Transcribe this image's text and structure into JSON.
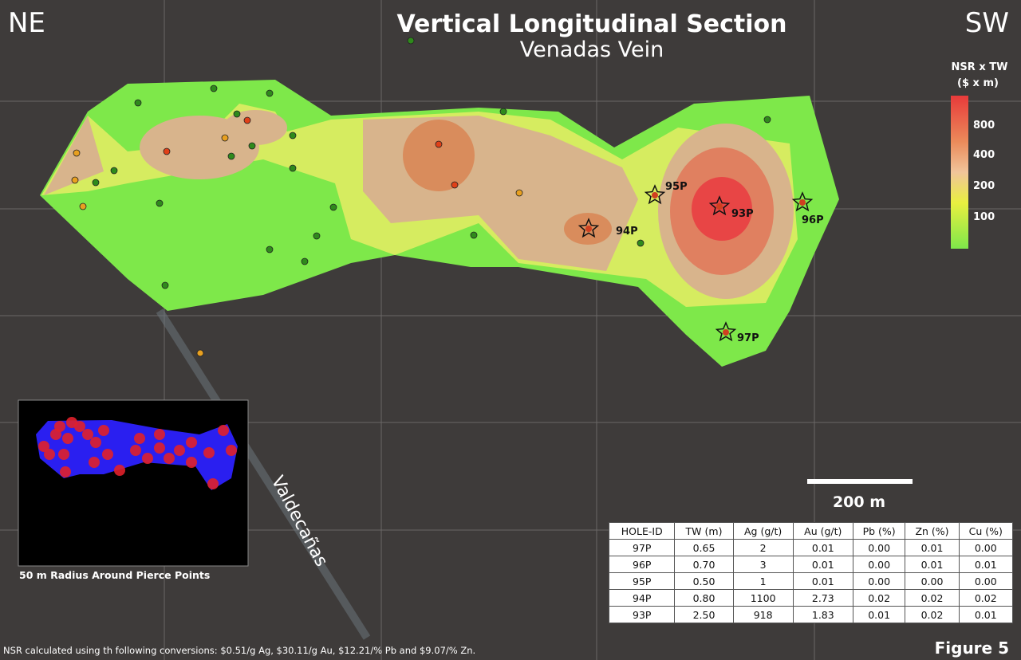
{
  "header": {
    "left": "NE",
    "right": "SW",
    "title": "Vertical Longitudinal Section",
    "subtitle": "Venadas Vein"
  },
  "legend": {
    "title": "NSR x TW",
    "unit": "($ x m)",
    "labels": [
      800,
      400,
      200,
      100
    ]
  },
  "pierce_points": [
    "95P",
    "93P",
    "94P",
    "96P",
    "97P"
  ],
  "place_label": "Valdecañas",
  "scale_bar": "200 m",
  "inset": {
    "caption": "50 m Radius Around Pierce Points"
  },
  "table": {
    "columns": [
      "HOLE-ID",
      "TW (m)",
      "Ag (g/t)",
      "Au (g/t)",
      "Pb (%)",
      "Zn (%)",
      "Cu (%)"
    ],
    "rows": [
      [
        "97P",
        "0.65",
        "2",
        "0.01",
        "0.00",
        "0.01",
        "0.00"
      ],
      [
        "96P",
        "0.70",
        "3",
        "0.01",
        "0.00",
        "0.01",
        "0.01"
      ],
      [
        "95P",
        "0.50",
        "1",
        "0.01",
        "0.00",
        "0.00",
        "0.00"
      ],
      [
        "94P",
        "0.80",
        "1100",
        "2.73",
        "0.02",
        "0.02",
        "0.02"
      ],
      [
        "93P",
        "2.50",
        "918",
        "1.83",
        "0.01",
        "0.02",
        "0.01"
      ]
    ]
  },
  "footnote": "NSR calculated using th following conversions: $0.51/g Ag, $30.11/g Au,  $12.21/% Pb and $9.07/% Zn.",
  "figure": "Figure 5"
}
